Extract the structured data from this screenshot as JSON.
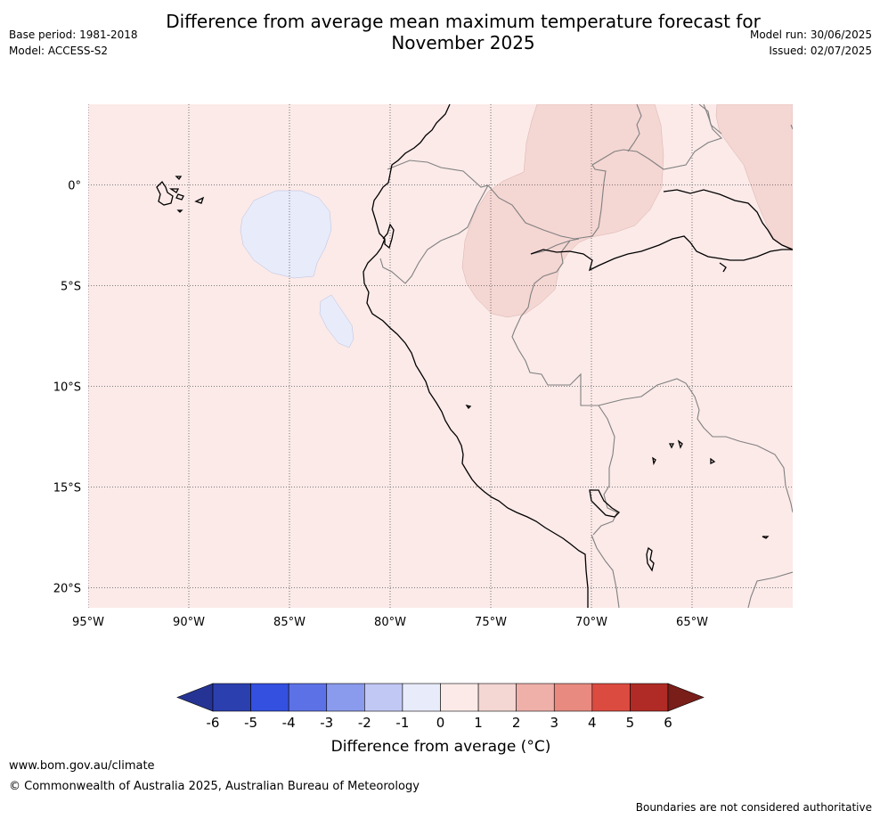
{
  "title": {
    "line1": "Difference from average mean maximum temperature forecast for",
    "line2": "November 2025"
  },
  "meta_left": {
    "base_period": "Base period: 1981-2018",
    "model": "Model: ACCESS-S2"
  },
  "meta_right": {
    "model_run": "Model run: 30/06/2025",
    "issued": "Issued: 02/07/2025"
  },
  "map": {
    "lon_labels": [
      "95°W",
      "90°W",
      "85°W",
      "80°W",
      "75°W",
      "70°W",
      "65°W"
    ],
    "lat_labels": [
      "0°",
      "5°S",
      "10°S",
      "15°S",
      "20°S"
    ],
    "lon_values": [
      -95,
      -90,
      -85,
      -80,
      -75,
      -70,
      -65
    ],
    "lat_values": [
      0,
      -5,
      -10,
      -15,
      -20
    ],
    "extent": {
      "lon": [
        -95,
        -60
      ],
      "lat": [
        -21,
        4
      ]
    },
    "gridlines": true,
    "fill_colors": {
      "range_0_1": "#fbeae8",
      "range_1_2": "#f4d6d3",
      "range_-1_0": "#e8ebfa",
      "ocean_background": "#fbeae8"
    }
  },
  "colorbar": {
    "ticks": [
      "-6",
      "-5",
      "-4",
      "-3",
      "-2",
      "-1",
      "0",
      "1",
      "2",
      "3",
      "4",
      "5",
      "6"
    ],
    "colors": [
      "#253494",
      "#2c3fae",
      "#3450e0",
      "#5d71e6",
      "#8a9aec",
      "#c2c8f4",
      "#e8ebfa",
      "#fbeae8",
      "#f4d6d3",
      "#efb0aa",
      "#e88a80",
      "#dc4b40",
      "#b02b25",
      "#7a1e1a"
    ],
    "label": "Difference from average (",
    "label_unit": "°C",
    "label_close": ")"
  },
  "footer": {
    "url": "www.bom.gov.au/climate",
    "copyright": "© Commonwealth of Australia 2025, Australian Bureau of Meteorology",
    "note": "Boundaries are not considered authoritative"
  }
}
